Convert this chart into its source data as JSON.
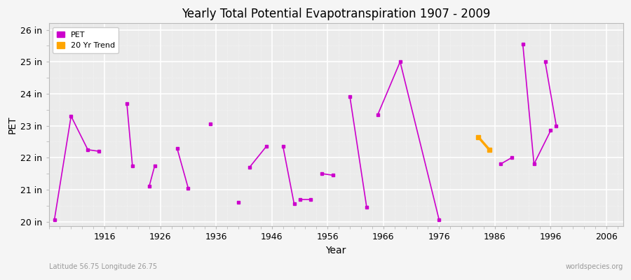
{
  "title": "Yearly Total Potential Evapotranspiration 1907 - 2009",
  "xlabel": "Year",
  "ylabel": "PET",
  "xlim": [
    1906,
    2009
  ],
  "ylim": [
    19.85,
    26.2
  ],
  "yticks": [
    20,
    21,
    22,
    23,
    24,
    25,
    26
  ],
  "ytick_labels": [
    "20 in",
    "21 in",
    "22 in",
    "23 in",
    "24 in",
    "25 in",
    "26 in"
  ],
  "xticks": [
    1916,
    1926,
    1936,
    1946,
    1956,
    1966,
    1976,
    1986,
    1996,
    2006
  ],
  "pet_color": "#cc00cc",
  "trend_color": "#ffa500",
  "bg_color": "#ebebeb",
  "fig_color": "#f5f5f5",
  "legend_pet": "PET",
  "legend_trend": "20 Yr Trend",
  "footer_left": "Latitude 56.75 Longitude 26.75",
  "footer_right": "worldspecies.org",
  "pet_segments": [
    [
      [
        1907,
        1910
      ],
      [
        20.05,
        23.3
      ]
    ],
    [
      [
        1910,
        1913
      ],
      [
        23.3,
        22.25
      ]
    ],
    [
      [
        1913,
        1915
      ],
      [
        22.25,
        22.2
      ]
    ],
    [
      [
        1920,
        1921
      ],
      [
        23.7,
        21.75
      ]
    ],
    [
      [
        1924,
        1925
      ],
      [
        21.1,
        21.75
      ]
    ],
    [
      [
        1929,
        1931
      ],
      [
        22.3,
        21.05
      ]
    ],
    [
      [
        1935,
        1935
      ],
      [
        23.05,
        23.05
      ]
    ],
    [
      [
        1940,
        1940
      ],
      [
        20.6,
        20.6
      ]
    ],
    [
      [
        1942,
        1945
      ],
      [
        21.7,
        22.35
      ]
    ],
    [
      [
        1948,
        1950
      ],
      [
        22.35,
        20.55
      ]
    ],
    [
      [
        1951,
        1953
      ],
      [
        20.7,
        20.7
      ]
    ],
    [
      [
        1955,
        1957
      ],
      [
        21.5,
        21.45
      ]
    ],
    [
      [
        1960,
        1963
      ],
      [
        23.9,
        20.45
      ]
    ],
    [
      [
        1965,
        1969
      ],
      [
        23.35,
        25.0
      ]
    ],
    [
      [
        1969,
        1976
      ],
      [
        25.0,
        20.05
      ]
    ],
    [
      [
        1983,
        1985
      ],
      [
        22.65,
        22.25
      ]
    ],
    [
      [
        1987,
        1989
      ],
      [
        21.8,
        22.0
      ]
    ],
    [
      [
        1991,
        1993
      ],
      [
        25.55,
        21.8
      ]
    ],
    [
      [
        1993,
        1996
      ],
      [
        21.8,
        22.85
      ]
    ],
    [
      [
        1995,
        1997
      ],
      [
        25.0,
        23.0
      ]
    ]
  ],
  "pet_points": [
    [
      1907,
      20.05
    ],
    [
      1910,
      23.3
    ],
    [
      1913,
      22.25
    ],
    [
      1915,
      22.2
    ],
    [
      1920,
      23.7
    ],
    [
      1921,
      21.75
    ],
    [
      1924,
      21.1
    ],
    [
      1925,
      21.75
    ],
    [
      1929,
      22.3
    ],
    [
      1931,
      21.05
    ],
    [
      1935,
      23.05
    ],
    [
      1940,
      20.6
    ],
    [
      1942,
      21.7
    ],
    [
      1945,
      22.35
    ],
    [
      1948,
      22.35
    ],
    [
      1950,
      20.55
    ],
    [
      1951,
      20.7
    ],
    [
      1953,
      20.7
    ],
    [
      1955,
      21.5
    ],
    [
      1957,
      21.45
    ],
    [
      1960,
      23.9
    ],
    [
      1963,
      20.45
    ],
    [
      1965,
      23.35
    ],
    [
      1969,
      25.0
    ],
    [
      1976,
      20.05
    ],
    [
      1983,
      22.65
    ],
    [
      1985,
      22.25
    ],
    [
      1987,
      21.8
    ],
    [
      1989,
      22.0
    ],
    [
      1991,
      25.55
    ],
    [
      1993,
      21.8
    ],
    [
      1995,
      25.0
    ],
    [
      1996,
      22.85
    ],
    [
      1997,
      23.0
    ]
  ],
  "trend_segments": [
    [
      [
        1983,
        1985
      ],
      [
        22.65,
        22.25
      ]
    ]
  ]
}
